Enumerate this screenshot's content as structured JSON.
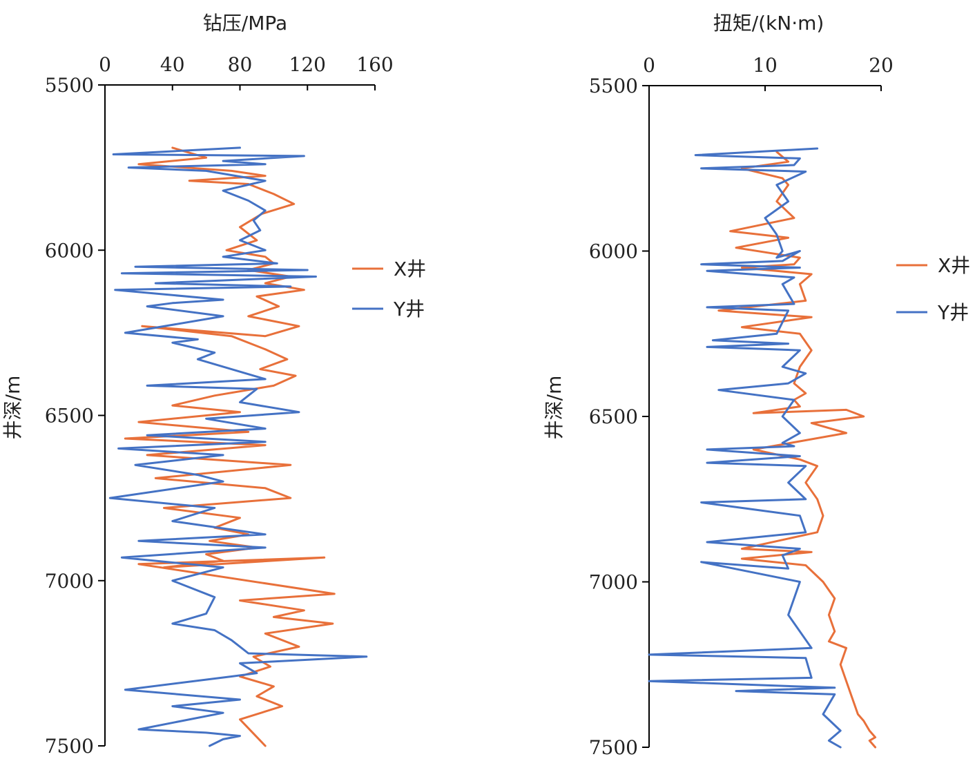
{
  "colors": {
    "x_well": "#e8703a",
    "y_well": "#4472c4"
  },
  "chart_data": [
    {
      "type": "line",
      "title": "",
      "xlabel": "钻压/MPa",
      "ylabel": "井深/m",
      "xlim": [
        0,
        160
      ],
      "ylim": [
        5500,
        7500
      ],
      "y_inverted": true,
      "xticks": [
        0,
        40,
        80,
        120,
        160
      ],
      "yticks": [
        5500,
        6000,
        6500,
        7000,
        7500
      ],
      "legend_position": "right",
      "grid": false,
      "series": [
        {
          "name": "X井",
          "x": [
            40,
            60,
            20,
            75,
            95,
            50,
            85,
            100,
            112,
            93,
            80,
            90,
            72,
            95,
            100,
            85,
            110,
            95,
            118,
            90,
            103,
            85,
            115,
            95,
            22,
            75,
            95,
            108,
            92,
            113,
            100,
            65,
            40,
            80,
            20,
            85,
            12,
            95,
            25,
            110,
            30,
            95,
            110,
            35,
            80,
            65,
            85,
            62,
            90,
            60,
            70,
            35,
            130,
            20,
            136,
            80,
            118,
            100,
            135,
            95,
            115,
            88,
            98,
            80,
            100,
            90,
            105,
            80,
            95
          ],
          "y": [
            5690,
            5720,
            5740,
            5760,
            5775,
            5790,
            5800,
            5830,
            5860,
            5890,
            5930,
            5970,
            6000,
            6020,
            6040,
            6060,
            6080,
            6100,
            6120,
            6140,
            6170,
            6200,
            6230,
            6260,
            6230,
            6260,
            6300,
            6330,
            6360,
            6380,
            6410,
            6440,
            6470,
            6490,
            6520,
            6550,
            6570,
            6590,
            6620,
            6650,
            6690,
            6720,
            6750,
            6780,
            6810,
            6840,
            6860,
            6880,
            6900,
            6920,
            6940,
            6960,
            6930,
            6950,
            7040,
            7060,
            7090,
            7110,
            7130,
            7160,
            7200,
            7230,
            7260,
            7290,
            7320,
            7350,
            7380,
            7420,
            7500
          ]
        },
        {
          "name": "Y井",
          "x": [
            80,
            5,
            118,
            70,
            95,
            14,
            60,
            95,
            70,
            85,
            95,
            88,
            92,
            80,
            95,
            70,
            102,
            18,
            120,
            10,
            125,
            30,
            110,
            6,
            70,
            40,
            25,
            70,
            12,
            55,
            40,
            65,
            55,
            95,
            25,
            90,
            80,
            115,
            60,
            95,
            25,
            95,
            8,
            70,
            18,
            55,
            70,
            3,
            65,
            40,
            95,
            20,
            95,
            10,
            70,
            40,
            65,
            60,
            40,
            65,
            75,
            80,
            85,
            155,
            80,
            90,
            75,
            12,
            80,
            40,
            70,
            20,
            60,
            80,
            70,
            62
          ],
          "y": [
            5690,
            5710,
            5715,
            5730,
            5740,
            5750,
            5760,
            5790,
            5820,
            5850,
            5880,
            5910,
            5940,
            5970,
            6000,
            6020,
            6040,
            6050,
            6060,
            6070,
            6080,
            6100,
            6110,
            6120,
            6150,
            6160,
            6170,
            6200,
            6250,
            6270,
            6280,
            6310,
            6330,
            6390,
            6410,
            6420,
            6460,
            6490,
            6510,
            6540,
            6560,
            6580,
            6600,
            6620,
            6650,
            6680,
            6700,
            6750,
            6780,
            6820,
            6860,
            6880,
            6900,
            6930,
            6960,
            7000,
            7050,
            7100,
            7130,
            7150,
            7180,
            7200,
            7220,
            7230,
            7250,
            7280,
            7290,
            7330,
            7360,
            7380,
            7400,
            7450,
            7460,
            7470,
            7480,
            7500
          ]
        }
      ]
    },
    {
      "type": "line",
      "title": "",
      "xlabel": "扭矩/(kN·m)",
      "ylabel": "井深/m",
      "xlim": [
        0,
        20
      ],
      "ylim": [
        5500,
        7500
      ],
      "y_inverted": true,
      "xticks": [
        0,
        10,
        20
      ],
      "yticks": [
        5500,
        6000,
        6500,
        7000,
        7500
      ],
      "legend_position": "right",
      "grid": false,
      "series": [
        {
          "name": "X井",
          "x": [
            11,
            12,
            8,
            11.5,
            12,
            11,
            12.5,
            7,
            12,
            7.5,
            13,
            12.5,
            8,
            14,
            13,
            13.5,
            6,
            14,
            8,
            13,
            14,
            13,
            12.5,
            13.5,
            12.5,
            13,
            9,
            17,
            18.5,
            14,
            17,
            9,
            13,
            14.5,
            13.5,
            14.5,
            15,
            14.5,
            8,
            14,
            8,
            13.5,
            15,
            16,
            15.5,
            16,
            15.5,
            17,
            16.5,
            17,
            17.5,
            18,
            18.5,
            19,
            19.5,
            19,
            19.5
          ],
          "y": [
            5700,
            5730,
            5750,
            5780,
            5800,
            5850,
            5900,
            5940,
            5960,
            5990,
            6020,
            6040,
            6050,
            6070,
            6100,
            6150,
            6180,
            6200,
            6230,
            6250,
            6300,
            6350,
            6400,
            6430,
            6450,
            6470,
            6490,
            6480,
            6500,
            6520,
            6550,
            6600,
            6630,
            6650,
            6700,
            6750,
            6800,
            6850,
            6900,
            6910,
            6930,
            6950,
            7000,
            7050,
            7100,
            7150,
            7180,
            7200,
            7250,
            7300,
            7350,
            7400,
            7420,
            7450,
            7470,
            7480,
            7500
          ]
        },
        {
          "name": "Y井",
          "x": [
            14.5,
            4,
            13,
            12.5,
            4.5,
            13.5,
            11,
            12,
            10,
            11,
            11.5,
            11,
            13,
            11.5,
            4.5,
            13,
            5,
            12.5,
            11.5,
            12.5,
            5,
            12,
            11,
            5.5,
            12,
            5,
            13,
            11.5,
            13.5,
            12,
            6,
            12.5,
            11.5,
            13,
            11.5,
            12.5,
            5,
            13,
            5,
            13.5,
            12,
            13.5,
            4.5,
            13,
            13.5,
            5,
            13,
            11.5,
            12,
            4.5,
            13,
            12,
            14,
            0,
            13.5,
            14,
            0,
            16,
            7.5,
            16,
            15,
            16.5,
            15.5,
            16.5
          ],
          "y": [
            5690,
            5710,
            5720,
            5740,
            5750,
            5760,
            5800,
            5850,
            5900,
            5950,
            6000,
            6020,
            6000,
            6030,
            6040,
            6050,
            6060,
            6080,
            6100,
            6160,
            6170,
            6180,
            6250,
            6270,
            6280,
            6290,
            6300,
            6350,
            6370,
            6400,
            6420,
            6450,
            6500,
            6550,
            6580,
            6590,
            6600,
            6620,
            6640,
            6650,
            6700,
            6750,
            6760,
            6800,
            6850,
            6880,
            6900,
            6920,
            6960,
            6940,
            7000,
            7100,
            7200,
            7220,
            7230,
            7290,
            7300,
            7320,
            7330,
            7340,
            7400,
            7450,
            7480,
            7500
          ]
        }
      ]
    }
  ]
}
